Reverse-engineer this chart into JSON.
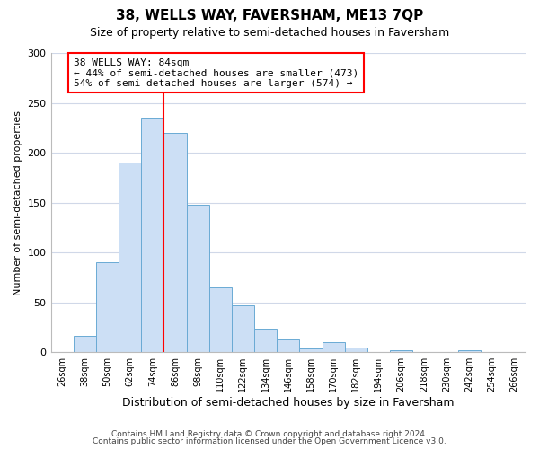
{
  "title": "38, WELLS WAY, FAVERSHAM, ME13 7QP",
  "subtitle": "Size of property relative to semi-detached houses in Faversham",
  "xlabel": "Distribution of semi-detached houses by size in Faversham",
  "ylabel": "Number of semi-detached properties",
  "bar_labels": [
    "26sqm",
    "38sqm",
    "50sqm",
    "62sqm",
    "74sqm",
    "86sqm",
    "98sqm",
    "110sqm",
    "122sqm",
    "134sqm",
    "146sqm",
    "158sqm",
    "170sqm",
    "182sqm",
    "194sqm",
    "206sqm",
    "218sqm",
    "230sqm",
    "242sqm",
    "254sqm",
    "266sqm"
  ],
  "bar_values": [
    0,
    16,
    90,
    190,
    235,
    220,
    148,
    65,
    47,
    24,
    13,
    4,
    10,
    5,
    0,
    2,
    0,
    0,
    2,
    0,
    0
  ],
  "bar_color": "#ccdff5",
  "bar_edge_color": "#6aaad4",
  "annotation_line1": "38 WELLS WAY: 84sqm",
  "annotation_line2": "← 44% of semi-detached houses are smaller (473)",
  "annotation_line3": "54% of semi-detached houses are larger (574) →",
  "ylim": [
    0,
    300
  ],
  "yticks": [
    0,
    50,
    100,
    150,
    200,
    250,
    300
  ],
  "footer1": "Contains HM Land Registry data © Crown copyright and database right 2024.",
  "footer2": "Contains public sector information licensed under the Open Government Licence v3.0.",
  "background_color": "#ffffff",
  "grid_color": "#d0d8e8"
}
